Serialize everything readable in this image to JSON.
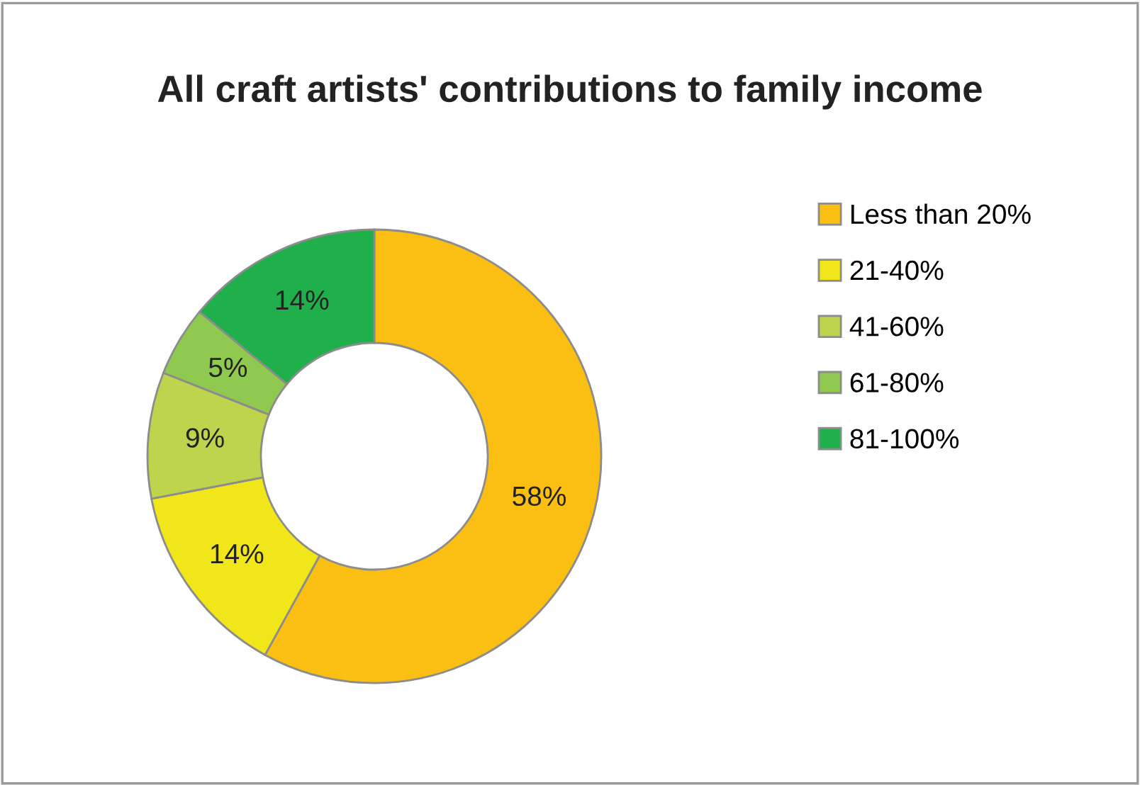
{
  "chart_data": {
    "type": "donut",
    "title": "All craft artists' contributions to family income",
    "categories": [
      "Less than 20%",
      "21-40%",
      "41-60%",
      "61-80%",
      "81-100%"
    ],
    "values": [
      58,
      14,
      9,
      5,
      14
    ],
    "colors": [
      "#fbbf13",
      "#f0e619",
      "#bdd44c",
      "#8fc94f",
      "#1fb04b"
    ],
    "value_labels": [
      "58%",
      "14%",
      "9%",
      "5%",
      "14%"
    ],
    "legend": "right"
  }
}
